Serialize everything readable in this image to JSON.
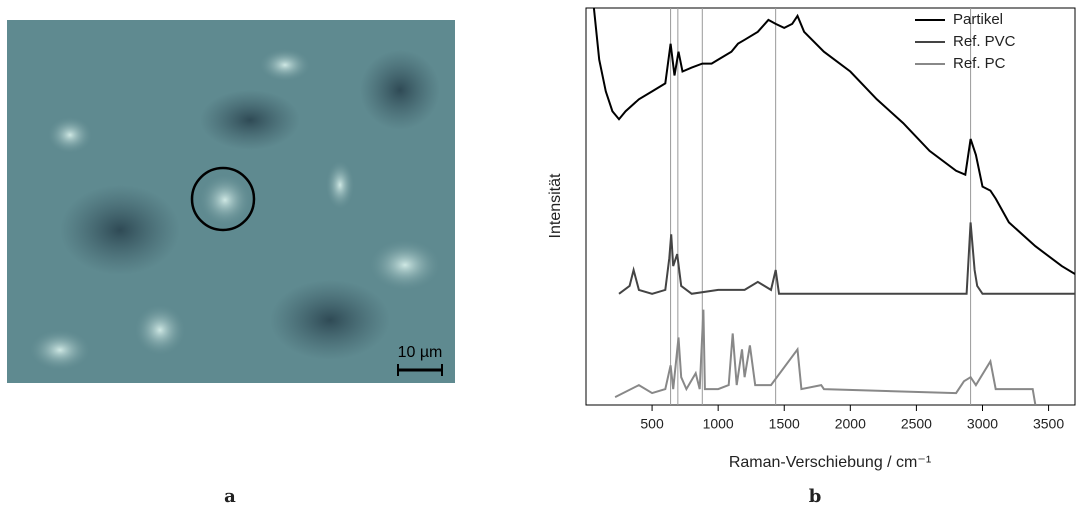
{
  "figure": {
    "panel_labels": [
      "a",
      "b"
    ],
    "scale_bar": "10 µm"
  },
  "chart_data": {
    "type": "line",
    "xlabel": "Raman-Verschiebung / cm⁻¹",
    "ylabel": "Intensität",
    "xlim": [
      0,
      3700
    ],
    "ylim": [
      0,
      100
    ],
    "xticks": [
      500,
      1000,
      1500,
      2000,
      2500,
      3000,
      3500
    ],
    "reference_lines": [
      640,
      695,
      880,
      1435,
      2910
    ],
    "legend": "upper right",
    "series": [
      {
        "name": "Partikel",
        "color": "#000000",
        "x": [
          60,
          100,
          150,
          200,
          250,
          300,
          400,
          500,
          600,
          640,
          670,
          700,
          730,
          800,
          880,
          950,
          1000,
          1100,
          1150,
          1200,
          1300,
          1380,
          1435,
          1500,
          1560,
          1600,
          1650,
          1800,
          2000,
          2200,
          2400,
          2600,
          2800,
          2870,
          2910,
          2950,
          3000,
          3060,
          3100,
          3200,
          3400,
          3600,
          3700
        ],
        "values": [
          100,
          87,
          79,
          74,
          72,
          74,
          77,
          79,
          81,
          91,
          83,
          89,
          84,
          85,
          86,
          86,
          87,
          89,
          91,
          92,
          94,
          97,
          96,
          95,
          96,
          98,
          94,
          89,
          84,
          77,
          71,
          64,
          59,
          58,
          67,
          63,
          55,
          54,
          52,
          46,
          40,
          35,
          33
        ]
      },
      {
        "name": "Ref. PVC",
        "color": "#444444",
        "x": [
          250,
          330,
          360,
          400,
          500,
          600,
          630,
          645,
          660,
          690,
          720,
          800,
          1000,
          1100,
          1200,
          1300,
          1400,
          1435,
          1460,
          2000,
          2500,
          2880,
          2910,
          2940,
          2960,
          3000,
          3700
        ],
        "values": [
          28,
          30,
          34,
          29,
          28,
          29,
          37,
          43,
          35,
          38,
          30,
          28,
          29,
          29,
          29,
          31,
          29,
          34,
          28,
          28,
          28,
          28,
          46,
          34,
          30,
          28,
          28
        ]
      },
      {
        "name": "Ref. PC",
        "color": "#888888",
        "x": [
          220,
          400,
          500,
          600,
          640,
          660,
          700,
          720,
          760,
          830,
          860,
          888,
          900,
          1000,
          1080,
          1110,
          1140,
          1180,
          1200,
          1240,
          1280,
          1400,
          1600,
          1630,
          1780,
          1800,
          2800,
          2860,
          2910,
          2950,
          3060,
          3100,
          3380,
          3400
        ],
        "values": [
          2,
          5,
          3,
          4,
          10,
          4,
          17,
          7,
          4,
          8,
          4,
          24,
          4,
          4,
          5,
          18,
          5,
          14,
          7,
          15,
          5,
          5,
          14,
          4,
          5,
          4,
          3,
          6,
          7,
          5,
          11,
          4,
          4,
          0
        ]
      }
    ]
  }
}
